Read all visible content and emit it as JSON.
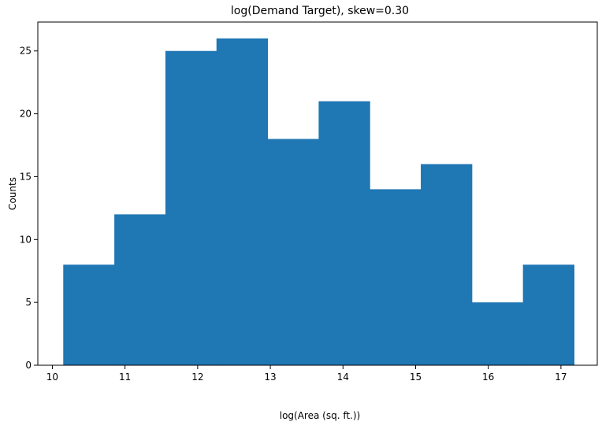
{
  "chart_data": {
    "type": "bar",
    "title": "log(Demand Target), skew=0.30",
    "xlabel": "log(Area (sq. ft.))",
    "ylabel": "Counts",
    "bin_edges": [
      10.15,
      10.853,
      11.556,
      12.259,
      12.962,
      13.665,
      14.368,
      15.071,
      15.774,
      16.477,
      17.18
    ],
    "values": [
      8,
      12,
      25,
      26,
      18,
      21,
      14,
      16,
      5,
      8
    ],
    "xlim": [
      9.8,
      17.5
    ],
    "ylim": [
      0,
      27.3
    ],
    "xticks": [
      10,
      11,
      12,
      13,
      14,
      15,
      16,
      17
    ],
    "yticks": [
      0,
      5,
      10,
      15,
      20,
      25
    ],
    "bar_color": "#1f77b4",
    "grid": false
  }
}
